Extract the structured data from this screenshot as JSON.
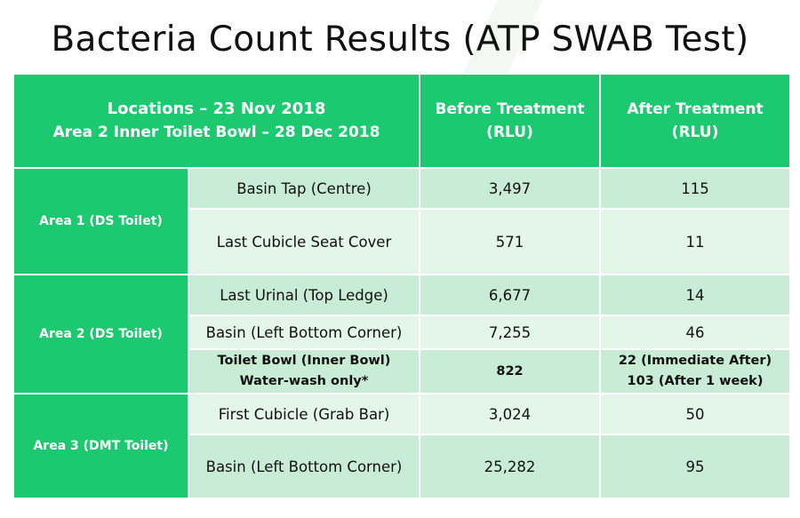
{
  "title": "Bacteria Count Results (ATP SWAB Test)",
  "header": {
    "locations_line1": "Locations – 23 Nov 2018",
    "locations_line2": "Area 2 Inner Toilet Bowl – 28 Dec 2018",
    "before_line1": "Before Treatment",
    "before_line2": "(RLU)",
    "after_line1": "After Treatment",
    "after_line2": "(RLU)"
  },
  "areas": [
    {
      "name": "Area 1 (DS Toilet)",
      "rows": [
        {
          "location": "Basin Tap (Centre)",
          "before": "3,497",
          "after": "115"
        },
        {
          "location": "Last Cubicle Seat Cover",
          "before": "571",
          "after": "11"
        }
      ]
    },
    {
      "name": "Area 2 (DS Toilet)",
      "rows": [
        {
          "location": "Last Urinal (Top Ledge)",
          "before": "6,677",
          "after": "14"
        },
        {
          "location": "Basin (Left Bottom Corner)",
          "before": "7,255",
          "after": "46"
        },
        {
          "location_line1": "Toilet Bowl (Inner Bowl)",
          "location_line2": "Water-wash only*",
          "before": "822",
          "after_line1": "22 (Immediate After)",
          "after_line2": "103 (After 1 week)"
        }
      ]
    },
    {
      "name": "Area 3 (DMT Toilet)",
      "rows": [
        {
          "location": "First Cubicle (Grab Bar)",
          "before": "3,024",
          "after": "50"
        },
        {
          "location": "Basin (Left Bottom Corner)",
          "before": "25,282",
          "after": "95"
        }
      ]
    }
  ],
  "colors": {
    "header_green": "#1dc970",
    "row_dark": "#c9ecd6",
    "row_light": "#e4f5ea"
  }
}
